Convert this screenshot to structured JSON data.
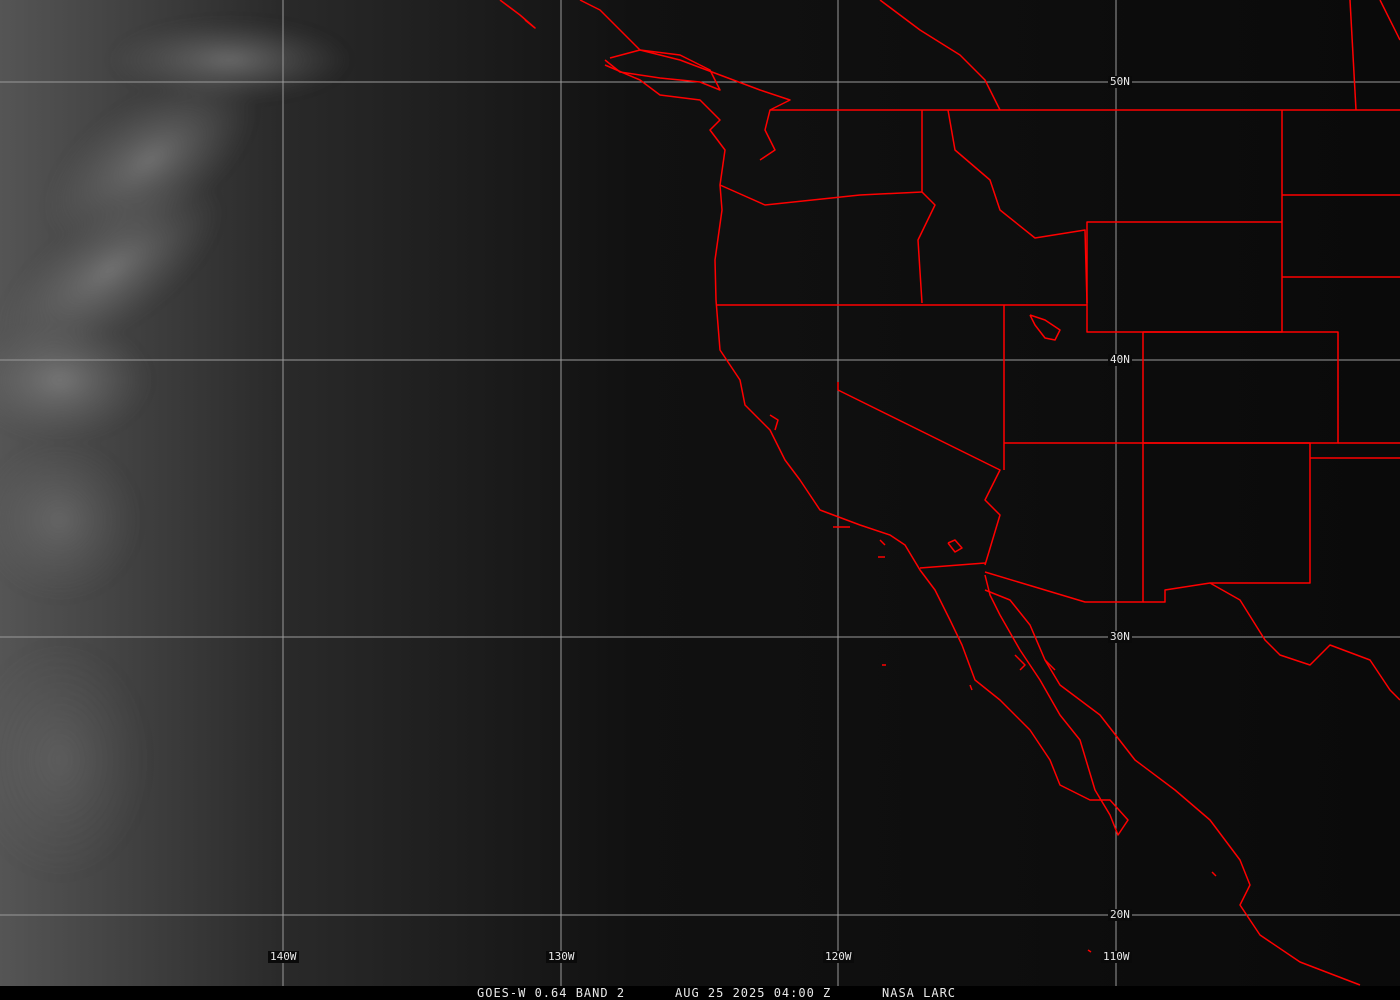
{
  "caption": {
    "satellite": "GOES-W 0.64 BAND 2",
    "datetime": "AUG 25 2025 04:00 Z",
    "source": "NASA LARC"
  },
  "grid": {
    "latitude_labels": [
      "50N",
      "40N",
      "30N",
      "20N"
    ],
    "longitude_labels": [
      "140W",
      "130W",
      "120W",
      "110W"
    ]
  },
  "colors": {
    "borders": "#ff0000",
    "grid": "#9a9a9a",
    "background": "#0a0a0a"
  }
}
